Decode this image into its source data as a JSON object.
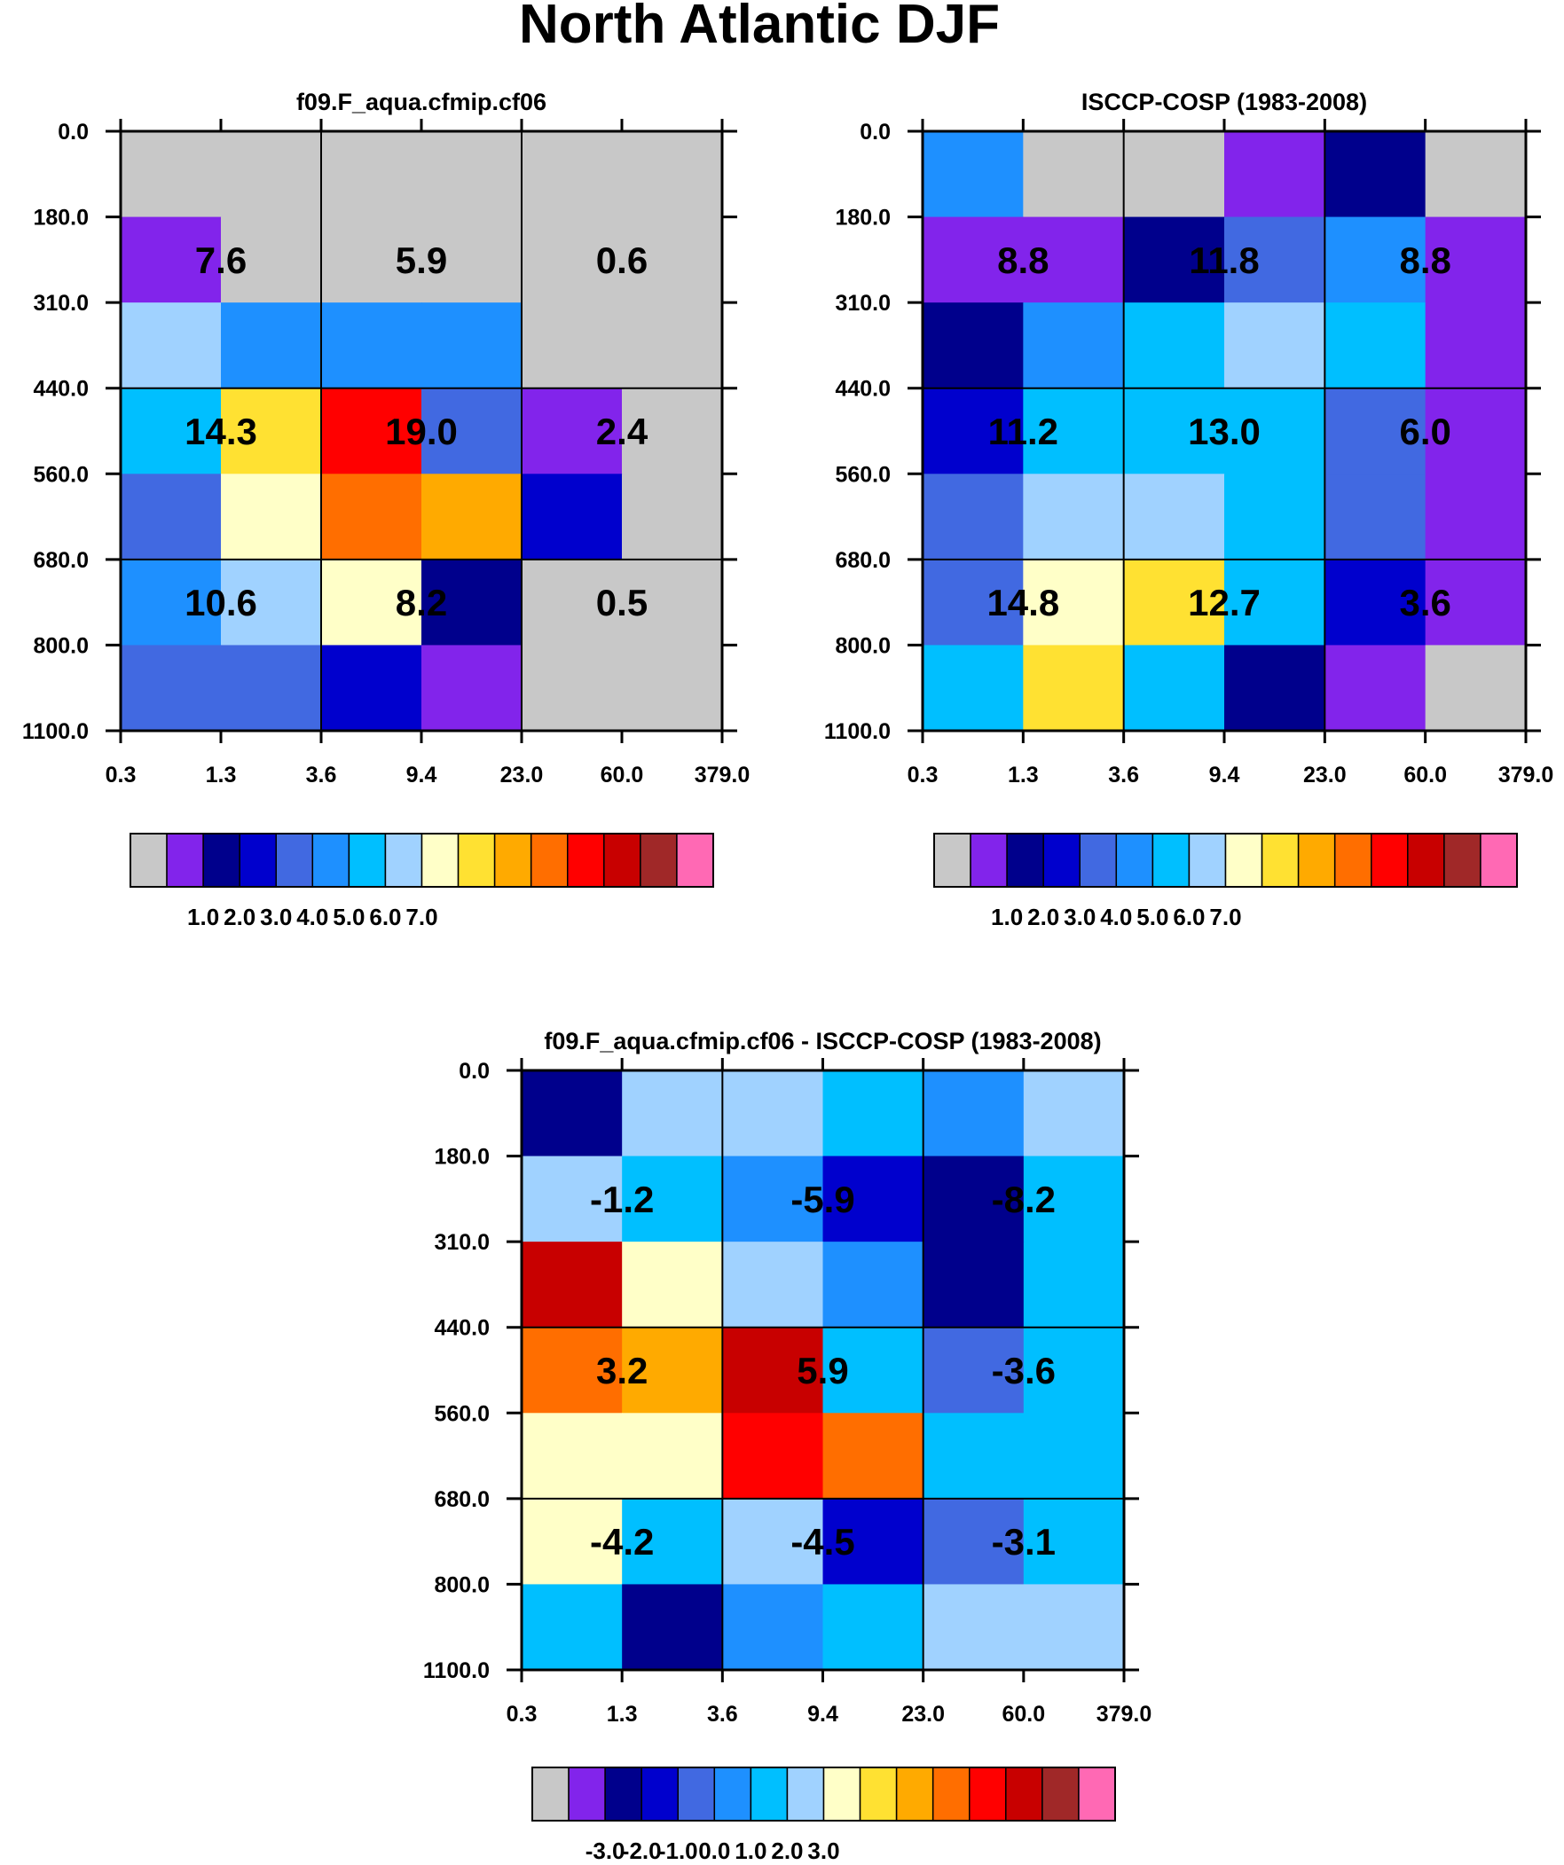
{
  "title": "North Atlantic DJF",
  "palette": [
    "#c8c8c8",
    "#8224eb",
    "#00008c",
    "#0000cd",
    "#4169e1",
    "#1e90ff",
    "#00bfff",
    "#a0d2ff",
    "#ffffc8",
    "#ffe132",
    "#ffaa00",
    "#ff6e00",
    "#ff0000",
    "#c80000",
    "#a02828",
    "#ff69b4"
  ],
  "chart_data": [
    {
      "type": "heatmap",
      "id": "model",
      "title": "f09.F_aqua.cfmip.cf06",
      "x_tick_labels": [
        "0.3",
        "1.3",
        "3.6",
        "9.4",
        "23.0",
        "60.0",
        "379.0"
      ],
      "y_tick_labels": [
        "0.0",
        "180.0",
        "310.0",
        "440.0",
        "560.0",
        "680.0",
        "800.0",
        "1100.0"
      ],
      "cell_colors": [
        [
          0,
          0,
          0,
          0,
          0,
          0
        ],
        [
          1,
          0,
          0,
          0,
          0,
          0
        ],
        [
          7,
          5,
          5,
          5,
          0,
          0
        ],
        [
          6,
          9,
          12,
          4,
          1,
          0
        ],
        [
          4,
          8,
          11,
          10,
          3,
          0
        ],
        [
          5,
          7,
          8,
          2,
          0,
          0
        ],
        [
          4,
          4,
          3,
          1,
          0,
          0
        ]
      ],
      "group_values": [
        [
          "7.6",
          "5.9",
          "0.6"
        ],
        [
          "14.3",
          "19.0",
          "2.4"
        ],
        [
          "10.6",
          "8.2",
          "0.5"
        ]
      ],
      "colorbar": {
        "labels": [
          "1.0",
          "2.0",
          "3.0",
          "4.0",
          "5.0",
          "6.0",
          "7.0"
        ]
      }
    },
    {
      "type": "heatmap",
      "id": "obs",
      "title": "ISCCP-COSP (1983-2008)",
      "x_tick_labels": [
        "0.3",
        "1.3",
        "3.6",
        "9.4",
        "23.0",
        "60.0",
        "379.0"
      ],
      "y_tick_labels": [
        "0.0",
        "180.0",
        "310.0",
        "440.0",
        "560.0",
        "680.0",
        "800.0",
        "1100.0"
      ],
      "cell_colors": [
        [
          5,
          0,
          0,
          1,
          2,
          0
        ],
        [
          1,
          1,
          2,
          4,
          5,
          1
        ],
        [
          2,
          5,
          6,
          7,
          6,
          1
        ],
        [
          3,
          6,
          6,
          6,
          4,
          1
        ],
        [
          4,
          7,
          7,
          6,
          4,
          1
        ],
        [
          4,
          8,
          9,
          6,
          3,
          1
        ],
        [
          6,
          9,
          6,
          2,
          1,
          0
        ]
      ],
      "group_values": [
        [
          "8.8",
          "11.8",
          "8.8"
        ],
        [
          "11.2",
          "13.0",
          "6.0"
        ],
        [
          "14.8",
          "12.7",
          "3.6"
        ]
      ],
      "colorbar": {
        "labels": [
          "1.0",
          "2.0",
          "3.0",
          "4.0",
          "5.0",
          "6.0",
          "7.0"
        ]
      }
    },
    {
      "type": "heatmap",
      "id": "diff",
      "title": "f09.F_aqua.cfmip.cf06 - ISCCP-COSP (1983-2008)",
      "x_tick_labels": [
        "0.3",
        "1.3",
        "3.6",
        "9.4",
        "23.0",
        "60.0",
        "379.0"
      ],
      "y_tick_labels": [
        "0.0",
        "180.0",
        "310.0",
        "440.0",
        "560.0",
        "680.0",
        "800.0",
        "1100.0"
      ],
      "cell_colors": [
        [
          2,
          7,
          7,
          6,
          5,
          7
        ],
        [
          7,
          6,
          5,
          3,
          2,
          6
        ],
        [
          13,
          8,
          7,
          5,
          2,
          6
        ],
        [
          11,
          10,
          13,
          6,
          4,
          6
        ],
        [
          8,
          8,
          12,
          11,
          6,
          6
        ],
        [
          8,
          6,
          7,
          3,
          4,
          6
        ],
        [
          6,
          2,
          5,
          6,
          7,
          7
        ]
      ],
      "group_values": [
        [
          "-1.2",
          "-5.9",
          "-8.2"
        ],
        [
          "3.2",
          "5.9",
          "-3.6"
        ],
        [
          "-4.2",
          "-4.5",
          "-3.1"
        ]
      ],
      "colorbar": {
        "labels": [
          "-3.0",
          "-2.0",
          "-1.0",
          "0.0",
          "1.0",
          "2.0",
          "3.0"
        ]
      }
    }
  ]
}
